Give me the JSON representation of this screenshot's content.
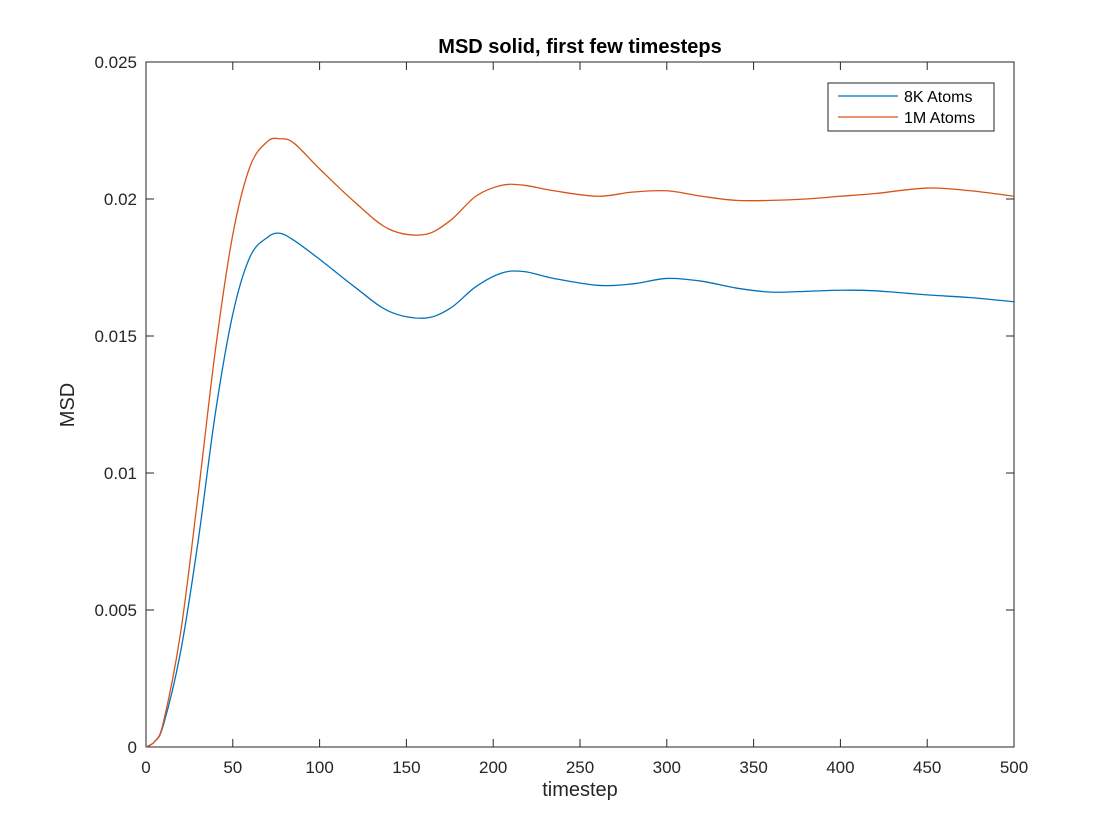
{
  "chart_data": {
    "type": "line",
    "title": "MSD solid, first few timesteps",
    "xlabel": "timestep",
    "ylabel": "MSD",
    "xlim": [
      0,
      500
    ],
    "ylim": [
      0,
      0.025
    ],
    "x_ticks": [
      0,
      50,
      100,
      150,
      200,
      250,
      300,
      350,
      400,
      450,
      500
    ],
    "x_tick_labels": [
      "0",
      "50",
      "100",
      "150",
      "200",
      "250",
      "300",
      "350",
      "400",
      "450",
      "500"
    ],
    "y_ticks": [
      0,
      0.005,
      0.01,
      0.015,
      0.02,
      0.025
    ],
    "y_tick_labels": [
      "0",
      "0.005",
      "0.01",
      "0.015",
      "0.02",
      "0.025"
    ],
    "grid": false,
    "legend_position": "top-right",
    "series": [
      {
        "name": "8K Atoms",
        "color": "#0072BD",
        "x": [
          0,
          5,
          10,
          20,
          30,
          40,
          50,
          60,
          70,
          77,
          85,
          100,
          120,
          140,
          160,
          175,
          190,
          205,
          218,
          235,
          260,
          280,
          300,
          320,
          340,
          360,
          380,
          400,
          420,
          450,
          475,
          500
        ],
        "y": [
          0,
          0.0002,
          0.0008,
          0.0035,
          0.0075,
          0.0122,
          0.0158,
          0.0179,
          0.0186,
          0.01875,
          0.0185,
          0.0178,
          0.0168,
          0.0159,
          0.01565,
          0.016,
          0.0168,
          0.0173,
          0.01735,
          0.0171,
          0.01685,
          0.0169,
          0.0171,
          0.017,
          0.01675,
          0.0166,
          0.01663,
          0.01667,
          0.01665,
          0.0165,
          0.0164,
          0.01625
        ]
      },
      {
        "name": "1M Atoms",
        "color": "#D95319",
        "x": [
          0,
          5,
          10,
          20,
          30,
          40,
          50,
          60,
          70,
          77,
          85,
          100,
          120,
          140,
          160,
          175,
          190,
          205,
          218,
          235,
          260,
          280,
          300,
          320,
          340,
          360,
          380,
          400,
          420,
          450,
          475,
          500
        ],
        "y": [
          0,
          0.0002,
          0.0009,
          0.0042,
          0.0092,
          0.0145,
          0.0187,
          0.0212,
          0.0221,
          0.0222,
          0.02205,
          0.0211,
          0.0199,
          0.0189,
          0.0187,
          0.0192,
          0.0201,
          0.0205,
          0.0205,
          0.0203,
          0.0201,
          0.02025,
          0.0203,
          0.0201,
          0.01995,
          0.01995,
          0.02,
          0.0201,
          0.0202,
          0.0204,
          0.0203,
          0.0201
        ]
      }
    ]
  }
}
